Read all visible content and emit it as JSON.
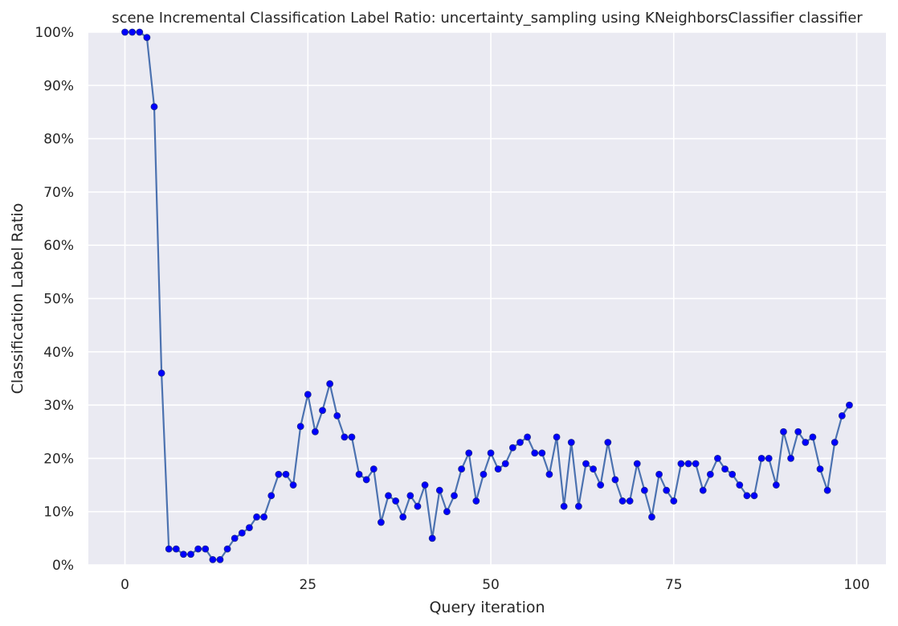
{
  "chart_data": {
    "type": "line",
    "title": "scene Incremental Classification Label Ratio: uncertainty_sampling using KNeighborsClassifier classifier",
    "xlabel": "Query iteration",
    "ylabel": "Classification Label Ratio",
    "xlim": [
      -5,
      104
    ],
    "ylim": [
      0,
      1
    ],
    "x_ticks": [
      0,
      25,
      50,
      75,
      100
    ],
    "y_ticks": [
      0,
      0.1,
      0.2,
      0.3,
      0.4,
      0.5,
      0.6,
      0.7,
      0.8,
      0.9,
      1.0
    ],
    "y_tick_labels": [
      "0%",
      "10%",
      "20%",
      "30%",
      "40%",
      "50%",
      "60%",
      "70%",
      "80%",
      "90%",
      "100%"
    ],
    "grid": true,
    "background": "#eaeaf2",
    "grid_color": "#ffffff",
    "line_color": "#4c72b0",
    "marker_color": "#0000ff",
    "series": [
      {
        "x": [
          0,
          1,
          2,
          3,
          4,
          5,
          6,
          7,
          8,
          9,
          10,
          11,
          12,
          13,
          14,
          15,
          16,
          17,
          18,
          19,
          20,
          21,
          22,
          23,
          24,
          25,
          26,
          27,
          28,
          29,
          30,
          31,
          32,
          33,
          34,
          35,
          36,
          37,
          38,
          39,
          40,
          41,
          42,
          43,
          44,
          45,
          46,
          47,
          48,
          49,
          50,
          51,
          52,
          53,
          54,
          55,
          56,
          57,
          58,
          59,
          60,
          61,
          62,
          63,
          64,
          65,
          66,
          67,
          68,
          69,
          70,
          71,
          72,
          73,
          74,
          75,
          76,
          77,
          78,
          79,
          80,
          81,
          82,
          83,
          84,
          85,
          86,
          87,
          88,
          89,
          90,
          91,
          92,
          93,
          94,
          95,
          96,
          97,
          98,
          99
        ],
        "values": [
          1.0,
          1.0,
          1.0,
          0.99,
          0.86,
          0.36,
          0.03,
          0.03,
          0.02,
          0.02,
          0.03,
          0.03,
          0.01,
          0.01,
          0.03,
          0.05,
          0.06,
          0.07,
          0.09,
          0.09,
          0.13,
          0.17,
          0.17,
          0.15,
          0.26,
          0.32,
          0.25,
          0.29,
          0.34,
          0.28,
          0.24,
          0.24,
          0.17,
          0.16,
          0.18,
          0.08,
          0.13,
          0.12,
          0.09,
          0.13,
          0.11,
          0.15,
          0.05,
          0.14,
          0.1,
          0.13,
          0.18,
          0.21,
          0.12,
          0.17,
          0.21,
          0.18,
          0.19,
          0.22,
          0.23,
          0.24,
          0.21,
          0.21,
          0.17,
          0.24,
          0.11,
          0.23,
          0.11,
          0.19,
          0.18,
          0.15,
          0.23,
          0.16,
          0.12,
          0.12,
          0.19,
          0.14,
          0.09,
          0.17,
          0.14,
          0.12,
          0.19,
          0.19,
          0.19,
          0.14,
          0.17,
          0.2,
          0.18,
          0.17,
          0.15,
          0.13,
          0.13,
          0.2,
          0.2,
          0.15,
          0.25,
          0.2,
          0.25,
          0.23,
          0.24,
          0.18,
          0.14,
          0.23,
          0.28,
          0.3
        ]
      }
    ]
  }
}
